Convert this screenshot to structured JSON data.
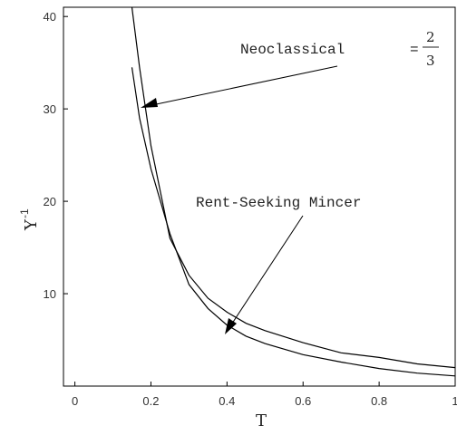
{
  "chart_data": {
    "type": "line",
    "xlabel": "T",
    "ylabel": "Y",
    "ylabel_sup": "-1",
    "xlim": [
      -0.03,
      1.0
    ],
    "ylim": [
      0,
      41
    ],
    "x_ticks": [
      0,
      0.2,
      0.4,
      0.6,
      0.8,
      1
    ],
    "x_tick_labels": [
      "0",
      "0.2",
      "0.4",
      "0.6",
      "0.8",
      "1"
    ],
    "y_ticks": [
      10,
      20,
      30,
      40
    ],
    "y_tick_labels": [
      "10",
      "20",
      "30",
      "40"
    ],
    "grid": false,
    "series": [
      {
        "name": "Neoclassical",
        "x": [
          0.15,
          0.17,
          0.2,
          0.25,
          0.3,
          0.35,
          0.4,
          0.45,
          0.5,
          0.6,
          0.7,
          0.8,
          0.9,
          1.0
        ],
        "y": [
          41,
          34.5,
          26.0,
          16.0,
          12.0,
          9.5,
          8.0,
          6.8,
          6.0,
          4.7,
          3.6,
          3.1,
          2.4,
          2.0
        ]
      },
      {
        "name": "Rent-Seeking Mincer",
        "x": [
          0.15,
          0.17,
          0.2,
          0.25,
          0.3,
          0.35,
          0.4,
          0.45,
          0.5,
          0.6,
          0.7,
          0.8,
          0.9,
          1.0
        ],
        "y": [
          34.5,
          29.0,
          23.5,
          16.5,
          11.0,
          8.4,
          6.6,
          5.4,
          4.6,
          3.4,
          2.6,
          1.9,
          1.4,
          1.1
        ]
      }
    ],
    "annotations": {
      "neoclassical_label": "Neoclassical",
      "neoclassical_eq": "=",
      "neoclassical_frac_num": "2",
      "neoclassical_frac_den": "3",
      "rent_label": "Rent-Seeking Mincer"
    }
  }
}
